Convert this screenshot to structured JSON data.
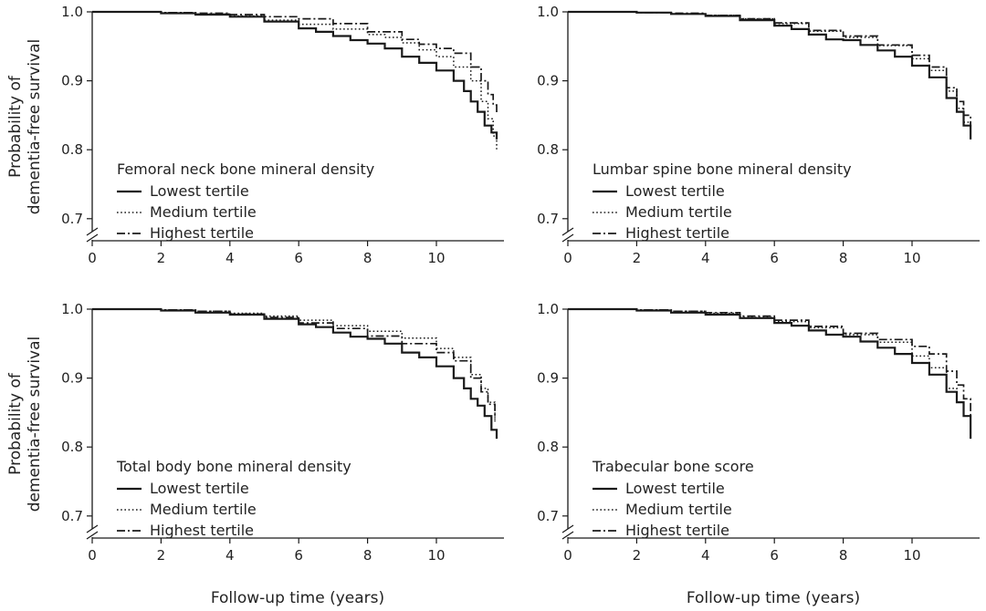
{
  "figure": {
    "ylabel_line1": "Probability of",
    "ylabel_line2": "dementia-free survival",
    "xlabel": "Follow-up time (years)"
  },
  "legend_entries": [
    "Lowest tertile",
    "Medium tertile",
    "Highest tertile"
  ],
  "chart_data": [
    {
      "type": "line",
      "title": "Femoral neck bone mineral density",
      "xlabel": "Follow-up time (years)",
      "ylabel": "Probability of dementia-free survival",
      "xlim": [
        0,
        11.8
      ],
      "ylim": [
        0.65,
        1.0
      ],
      "y_axis_break": true,
      "xticks": [
        "0",
        "2",
        "4",
        "6",
        "8",
        "10"
      ],
      "yticks": [
        "0.7",
        "0.8",
        "0.9",
        "1.0"
      ],
      "legend_position": "bottom-left",
      "grid": false,
      "series": [
        {
          "name": "Lowest tertile",
          "style": "solid",
          "points": [
            [
              0,
              1.0
            ],
            [
              1,
              1.0
            ],
            [
              2,
              0.998
            ],
            [
              3,
              0.996
            ],
            [
              4,
              0.993
            ],
            [
              5,
              0.986
            ],
            [
              6,
              0.976
            ],
            [
              6.5,
              0.971
            ],
            [
              7,
              0.965
            ],
            [
              7.5,
              0.959
            ],
            [
              8,
              0.954
            ],
            [
              8.5,
              0.947
            ],
            [
              9,
              0.935
            ],
            [
              9.5,
              0.926
            ],
            [
              10,
              0.915
            ],
            [
              10.5,
              0.9
            ],
            [
              10.8,
              0.885
            ],
            [
              11,
              0.87
            ],
            [
              11.2,
              0.855
            ],
            [
              11.4,
              0.835
            ],
            [
              11.6,
              0.825
            ],
            [
              11.75,
              0.815
            ]
          ]
        },
        {
          "name": "Medium tertile",
          "style": "dotted",
          "points": [
            [
              0,
              1.0
            ],
            [
              1,
              1.0
            ],
            [
              2,
              0.999
            ],
            [
              3,
              0.997
            ],
            [
              4,
              0.994
            ],
            [
              5,
              0.988
            ],
            [
              6,
              0.982
            ],
            [
              7,
              0.975
            ],
            [
              8,
              0.967
            ],
            [
              8.5,
              0.963
            ],
            [
              9,
              0.955
            ],
            [
              9.5,
              0.945
            ],
            [
              10,
              0.935
            ],
            [
              10.5,
              0.92
            ],
            [
              11,
              0.9
            ],
            [
              11.3,
              0.87
            ],
            [
              11.5,
              0.845
            ],
            [
              11.65,
              0.82
            ],
            [
              11.75,
              0.8
            ]
          ]
        },
        {
          "name": "Highest tertile",
          "style": "dashdot",
          "points": [
            [
              0,
              1.0
            ],
            [
              1,
              1.0
            ],
            [
              2,
              0.999
            ],
            [
              3,
              0.998
            ],
            [
              4,
              0.996
            ],
            [
              5,
              0.993
            ],
            [
              6,
              0.99
            ],
            [
              7,
              0.983
            ],
            [
              8,
              0.971
            ],
            [
              9,
              0.96
            ],
            [
              9.5,
              0.953
            ],
            [
              10,
              0.947
            ],
            [
              10.5,
              0.94
            ],
            [
              11,
              0.92
            ],
            [
              11.3,
              0.9
            ],
            [
              11.5,
              0.88
            ],
            [
              11.65,
              0.865
            ],
            [
              11.75,
              0.852
            ]
          ]
        }
      ]
    },
    {
      "type": "line",
      "title": "Lumbar spine bone mineral density",
      "xlabel": "Follow-up time (years)",
      "ylabel": "Probability of dementia-free survival",
      "xlim": [
        0,
        11.8
      ],
      "ylim": [
        0.65,
        1.0
      ],
      "y_axis_break": true,
      "xticks": [
        "0",
        "2",
        "4",
        "6",
        "8",
        "10"
      ],
      "yticks": [
        "0.7",
        "0.8",
        "0.9",
        "1.0"
      ],
      "legend_position": "bottom-left",
      "grid": false,
      "series": [
        {
          "name": "Lowest tertile",
          "style": "solid",
          "points": [
            [
              0,
              1.0
            ],
            [
              1,
              1.0
            ],
            [
              2,
              0.999
            ],
            [
              3,
              0.997
            ],
            [
              4,
              0.994
            ],
            [
              5,
              0.988
            ],
            [
              6,
              0.98
            ],
            [
              6.5,
              0.975
            ],
            [
              7,
              0.967
            ],
            [
              7.5,
              0.96
            ],
            [
              8,
              0.959
            ],
            [
              8.5,
              0.952
            ],
            [
              9,
              0.944
            ],
            [
              9.5,
              0.935
            ],
            [
              10,
              0.922
            ],
            [
              10.5,
              0.905
            ],
            [
              11,
              0.875
            ],
            [
              11.3,
              0.855
            ],
            [
              11.5,
              0.835
            ],
            [
              11.7,
              0.815
            ]
          ]
        },
        {
          "name": "Medium tertile",
          "style": "dotted",
          "points": [
            [
              0,
              1.0
            ],
            [
              1,
              1.0
            ],
            [
              2,
              0.999
            ],
            [
              3,
              0.997
            ],
            [
              4,
              0.995
            ],
            [
              5,
              0.99
            ],
            [
              6,
              0.983
            ],
            [
              7,
              0.972
            ],
            [
              8,
              0.963
            ],
            [
              9,
              0.951
            ],
            [
              10,
              0.932
            ],
            [
              10.5,
              0.915
            ],
            [
              11,
              0.885
            ],
            [
              11.3,
              0.86
            ],
            [
              11.5,
              0.84
            ],
            [
              11.7,
              0.82
            ]
          ]
        },
        {
          "name": "Highest tertile",
          "style": "dashdot",
          "points": [
            [
              0,
              1.0
            ],
            [
              1,
              1.0
            ],
            [
              2,
              0.999
            ],
            [
              3,
              0.998
            ],
            [
              4,
              0.995
            ],
            [
              5,
              0.99
            ],
            [
              6,
              0.984
            ],
            [
              7,
              0.973
            ],
            [
              8,
              0.965
            ],
            [
              9,
              0.952
            ],
            [
              10,
              0.937
            ],
            [
              10.5,
              0.92
            ],
            [
              11,
              0.89
            ],
            [
              11.3,
              0.87
            ],
            [
              11.5,
              0.85
            ],
            [
              11.7,
              0.825
            ]
          ]
        }
      ]
    },
    {
      "type": "line",
      "title": "Total body bone mineral density",
      "xlabel": "Follow-up time (years)",
      "ylabel": "Probability of dementia-free survival",
      "xlim": [
        0,
        11.8
      ],
      "ylim": [
        0.65,
        1.0
      ],
      "y_axis_break": true,
      "xticks": [
        "0",
        "2",
        "4",
        "6",
        "8",
        "10"
      ],
      "yticks": [
        "0.7",
        "0.8",
        "0.9",
        "1.0"
      ],
      "legend_position": "bottom-left",
      "grid": false,
      "series": [
        {
          "name": "Lowest tertile",
          "style": "solid",
          "points": [
            [
              0,
              1.0
            ],
            [
              1,
              1.0
            ],
            [
              2,
              0.998
            ],
            [
              3,
              0.995
            ],
            [
              4,
              0.992
            ],
            [
              5,
              0.986
            ],
            [
              6,
              0.978
            ],
            [
              6.5,
              0.974
            ],
            [
              7,
              0.966
            ],
            [
              7.5,
              0.96
            ],
            [
              8,
              0.957
            ],
            [
              8.5,
              0.95
            ],
            [
              9,
              0.937
            ],
            [
              9.5,
              0.93
            ],
            [
              10,
              0.917
            ],
            [
              10.5,
              0.9
            ],
            [
              10.8,
              0.885
            ],
            [
              11,
              0.87
            ],
            [
              11.2,
              0.86
            ],
            [
              11.4,
              0.845
            ],
            [
              11.6,
              0.825
            ],
            [
              11.75,
              0.812
            ]
          ]
        },
        {
          "name": "Medium tertile",
          "style": "dotted",
          "points": [
            [
              0,
              1.0
            ],
            [
              1,
              1.0
            ],
            [
              2,
              0.999
            ],
            [
              3,
              0.997
            ],
            [
              4,
              0.994
            ],
            [
              5,
              0.99
            ],
            [
              6,
              0.984
            ],
            [
              7,
              0.976
            ],
            [
              8,
              0.968
            ],
            [
              9,
              0.958
            ],
            [
              10,
              0.943
            ],
            [
              10.5,
              0.93
            ],
            [
              11,
              0.905
            ],
            [
              11.3,
              0.885
            ],
            [
              11.5,
              0.865
            ],
            [
              11.7,
              0.835
            ]
          ]
        },
        {
          "name": "Highest tertile",
          "style": "dashdot",
          "points": [
            [
              0,
              1.0
            ],
            [
              1,
              1.0
            ],
            [
              2,
              0.999
            ],
            [
              3,
              0.997
            ],
            [
              4,
              0.993
            ],
            [
              5,
              0.988
            ],
            [
              6,
              0.98
            ],
            [
              7,
              0.972
            ],
            [
              8,
              0.961
            ],
            [
              9,
              0.95
            ],
            [
              10,
              0.937
            ],
            [
              10.5,
              0.925
            ],
            [
              11,
              0.9
            ],
            [
              11.3,
              0.88
            ],
            [
              11.5,
              0.862
            ],
            [
              11.7,
              0.84
            ]
          ]
        }
      ]
    },
    {
      "type": "line",
      "title": "Trabecular bone score",
      "xlabel": "Follow-up time (years)",
      "ylabel": "Probability of dementia-free survival",
      "xlim": [
        0,
        11.8
      ],
      "ylim": [
        0.65,
        1.0
      ],
      "y_axis_break": true,
      "xticks": [
        "0",
        "2",
        "4",
        "6",
        "8",
        "10"
      ],
      "yticks": [
        "0.7",
        "0.8",
        "0.9",
        "1.0"
      ],
      "legend_position": "bottom-left",
      "grid": false,
      "series": [
        {
          "name": "Lowest tertile",
          "style": "solid",
          "points": [
            [
              0,
              1.0
            ],
            [
              1,
              1.0
            ],
            [
              2,
              0.998
            ],
            [
              3,
              0.995
            ],
            [
              4,
              0.992
            ],
            [
              5,
              0.987
            ],
            [
              6,
              0.98
            ],
            [
              6.5,
              0.976
            ],
            [
              7,
              0.969
            ],
            [
              7.5,
              0.963
            ],
            [
              8,
              0.96
            ],
            [
              8.5,
              0.953
            ],
            [
              9,
              0.944
            ],
            [
              9.5,
              0.935
            ],
            [
              10,
              0.922
            ],
            [
              10.5,
              0.905
            ],
            [
              11,
              0.88
            ],
            [
              11.3,
              0.865
            ],
            [
              11.5,
              0.845
            ],
            [
              11.7,
              0.812
            ]
          ]
        },
        {
          "name": "Medium tertile",
          "style": "dotted",
          "points": [
            [
              0,
              1.0
            ],
            [
              1,
              1.0
            ],
            [
              2,
              0.999
            ],
            [
              3,
              0.997
            ],
            [
              4,
              0.994
            ],
            [
              5,
              0.988
            ],
            [
              6,
              0.982
            ],
            [
              7,
              0.973
            ],
            [
              8,
              0.963
            ],
            [
              9,
              0.952
            ],
            [
              10,
              0.932
            ],
            [
              10.5,
              0.915
            ],
            [
              11,
              0.885
            ],
            [
              11.3,
              0.865
            ],
            [
              11.5,
              0.845
            ],
            [
              11.7,
              0.82
            ]
          ]
        },
        {
          "name": "Highest tertile",
          "style": "dashdot",
          "points": [
            [
              0,
              1.0
            ],
            [
              1,
              1.0
            ],
            [
              2,
              0.999
            ],
            [
              3,
              0.997
            ],
            [
              4,
              0.995
            ],
            [
              5,
              0.99
            ],
            [
              6,
              0.984
            ],
            [
              7,
              0.975
            ],
            [
              8,
              0.965
            ],
            [
              9,
              0.956
            ],
            [
              10,
              0.946
            ],
            [
              10.5,
              0.935
            ],
            [
              11,
              0.91
            ],
            [
              11.3,
              0.89
            ],
            [
              11.5,
              0.87
            ],
            [
              11.7,
              0.845
            ]
          ]
        }
      ]
    }
  ]
}
